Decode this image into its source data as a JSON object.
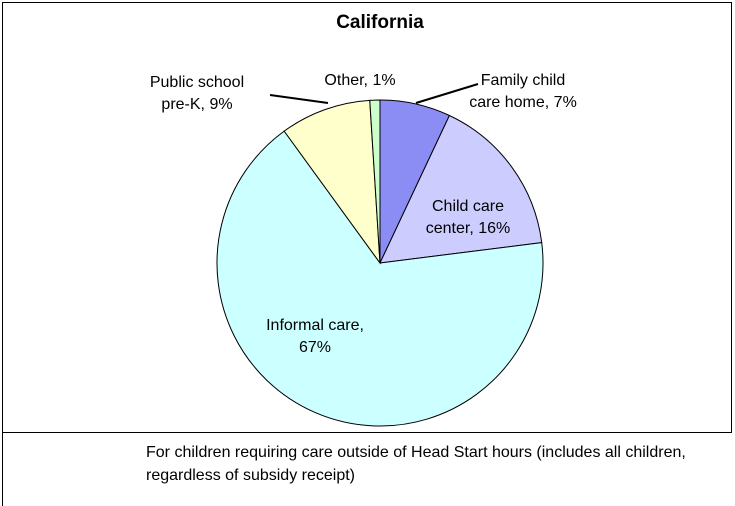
{
  "chart_data": {
    "type": "pie",
    "title": "California",
    "categories": [
      "Family child care home, 7%",
      "Child care center, 16%",
      "Informal care, 67%",
      "Public school pre-K, 9%",
      "Other, 1%"
    ],
    "values": [
      7,
      16,
      67,
      9,
      1
    ],
    "colors": [
      "#8c8cf5",
      "#ccccff",
      "#ccffff",
      "#ffffcc",
      "#ccffcc"
    ],
    "note": "For children requiring care outside of Head Start hours (includes all children, regardless of subsidy receipt)"
  }
}
